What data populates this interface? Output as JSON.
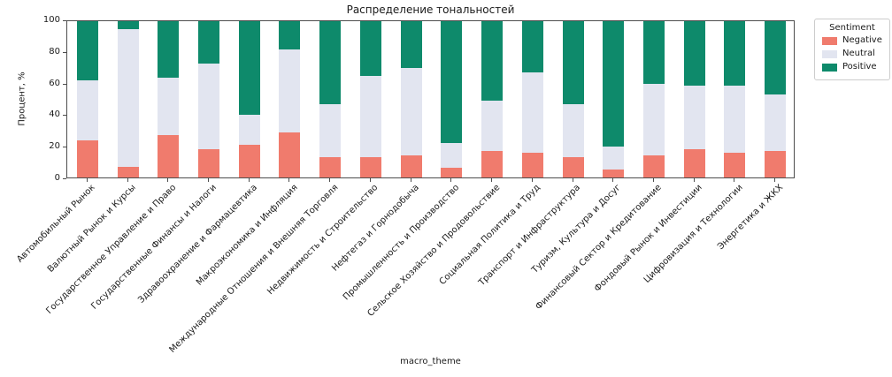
{
  "title": "Распределение тональностей",
  "x_axis": {
    "label": "macro_theme"
  },
  "y_axis": {
    "label": "Процент, %",
    "ticks": [
      0,
      20,
      40,
      60,
      80,
      100
    ]
  },
  "legend": {
    "title": "Sentiment",
    "items": [
      {
        "label": "Negative",
        "color": "#f07b6d"
      },
      {
        "label": "Neutral",
        "color": "#e2e5f0"
      },
      {
        "label": "Positive",
        "color": "#0e8a6b"
      }
    ]
  },
  "chart_data": {
    "type": "bar",
    "stacked": true,
    "title": "Распределение тональностей",
    "xlabel": "macro_theme",
    "ylabel": "Процент, %",
    "ylim": [
      0,
      100
    ],
    "grid": false,
    "legend_position": "outside upper right",
    "categories": [
      "Автомобильный Рынок",
      "Валютный Рынок и Курсы",
      "Государственное Управление и Право",
      "Государственные Финансы и Налоги",
      "Здравоохранение и Фармацевтика",
      "Макроэкономика и Инфляция",
      "Международные Отношения и Внешняя Торговля",
      "Недвижимость и Строительство",
      "Нефтегаз и Горнодобыча",
      "Промышленность и Производство",
      "Сельское Хозяйство и Продовольствие",
      "Социальная Политика и Труд",
      "Транспорт и Инфраструктура",
      "Туризм, Культура и Досуг",
      "Финансовый Сектор и Кредитование",
      "Фондовый Рынок и Инвестиции",
      "Цифровизация и Технологии",
      "Энергетика и ЖКХ"
    ],
    "series": [
      {
        "name": "Negative",
        "color": "#f07b6d",
        "values": [
          24,
          7,
          27,
          18,
          21,
          29,
          13,
          13,
          14,
          6,
          17,
          16,
          13,
          5,
          14,
          18,
          16,
          17
        ]
      },
      {
        "name": "Neutral",
        "color": "#e2e5f0",
        "values": [
          38,
          88,
          37,
          55,
          19,
          53,
          34,
          52,
          56,
          16,
          32,
          51,
          34,
          15,
          46,
          41,
          43,
          36
        ]
      },
      {
        "name": "Positive",
        "color": "#0e8a6b",
        "values": [
          38,
          5,
          36,
          27,
          60,
          18,
          53,
          35,
          30,
          78,
          51,
          33,
          53,
          80,
          40,
          41,
          41,
          47
        ]
      }
    ]
  }
}
